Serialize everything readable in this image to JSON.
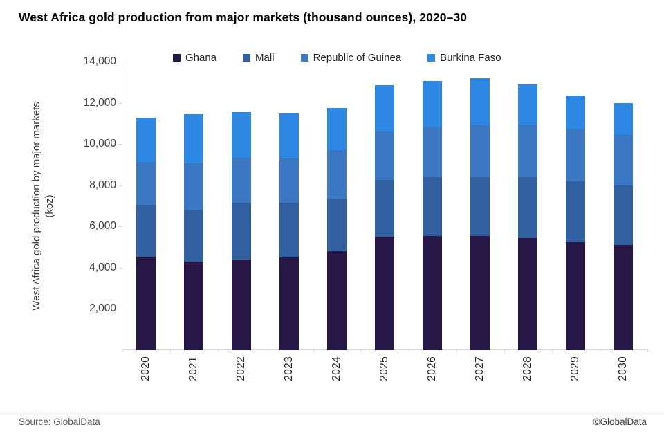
{
  "footer": {
    "source": "Source: GlobalData",
    "copyright": "©GlobalData"
  },
  "chart_data": {
    "type": "bar",
    "stacked": true,
    "title": "West Africa gold production from major markets (thousand ounces), 2020–30",
    "categories": [
      "2020",
      "2021",
      "2022",
      "2023",
      "2024",
      "2025",
      "2026",
      "2027",
      "2028",
      "2029",
      "2030"
    ],
    "series": [
      {
        "name": "Ghana",
        "slug": "ghana",
        "color": "#261747",
        "values": [
          4550,
          4300,
          4400,
          4500,
          4800,
          5500,
          5550,
          5550,
          5450,
          5250,
          5100
        ]
      },
      {
        "name": "Mali",
        "slug": "mali",
        "color": "#30609f",
        "values": [
          2500,
          2500,
          2750,
          2650,
          2550,
          2750,
          2850,
          2850,
          2950,
          2950,
          2900
        ]
      },
      {
        "name": "Republic of Guinea",
        "slug": "republic-of-guinea",
        "color": "#3c77c4",
        "values": [
          2100,
          2250,
          2200,
          2150,
          2350,
          2350,
          2400,
          2500,
          2500,
          2550,
          2450
        ]
      },
      {
        "name": "Burkina Faso",
        "slug": "burkina-faso",
        "color": "#2e87e2",
        "values": [
          2150,
          2400,
          2200,
          2200,
          2050,
          2250,
          2250,
          2300,
          2000,
          1600,
          1550
        ]
      }
    ],
    "totals": [
      11300,
      11450,
      11550,
      11500,
      11750,
      12850,
      13050,
      13200,
      12900,
      12350,
      12000
    ],
    "xlabel": "",
    "ylabel_lines": [
      "West Africa gold production by major markets",
      "(koz)"
    ],
    "ylim": [
      0,
      14000
    ],
    "y_ticks": [
      {
        "value": 2000,
        "label": "2,000"
      },
      {
        "value": 4000,
        "label": "4,000"
      },
      {
        "value": 6000,
        "label": "6,000"
      },
      {
        "value": 8000,
        "label": "8,000"
      },
      {
        "value": 10000,
        "label": "10,000"
      },
      {
        "value": 12000,
        "label": "12,000"
      },
      {
        "value": 14000,
        "label": "14,000"
      }
    ],
    "grid": false,
    "legend_position": "top",
    "axis_color": "#d5d5de"
  }
}
